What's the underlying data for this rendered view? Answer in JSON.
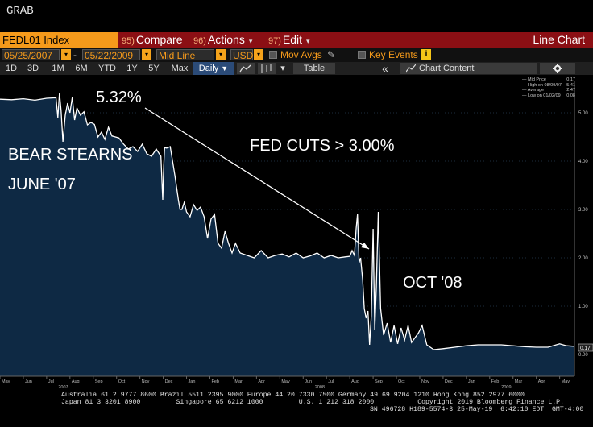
{
  "window": {
    "title": "GRAB"
  },
  "function_bar": {
    "ticker": "FEDL01 Index",
    "buttons": [
      {
        "num": "95)",
        "label": "Compare",
        "caret": ""
      },
      {
        "num": "96)",
        "label": "Actions",
        "caret": "▾"
      },
      {
        "num": "97)",
        "label": "Edit",
        "caret": "▾"
      }
    ],
    "chart_type": "Line Chart"
  },
  "options_bar": {
    "start_date": "05/25/2007",
    "separator": "-",
    "end_date": "05/22/2009",
    "price_type": "Mid Line",
    "currency": "USD",
    "mov_avgs": "Mov Avgs",
    "key_events": "Key Events",
    "info": "i"
  },
  "period_bar": {
    "periods": [
      "1D",
      "3D",
      "1M",
      "6M",
      "YTD",
      "1Y",
      "5Y",
      "Max"
    ],
    "frequency": "Daily",
    "table_label": "Table",
    "chart_content_label": "Chart Content",
    "collapse_label": "«",
    "settings_icon": "gear-icon"
  },
  "legend": [
    {
      "label": "Mid Price",
      "value": "0.17"
    },
    {
      "label": "High on 08/09/07",
      "value": "5.41"
    },
    {
      "label": "Average",
      "value": "2.47"
    },
    {
      "label": "Low on 01/02/09",
      "value": "0.08"
    }
  ],
  "annotations": {
    "peak": "5.32%",
    "cuts": "FED CUTS > 3.00%",
    "bear_line1": "BEAR STEARNS",
    "bear_line2": "JUNE '07",
    "oct": "OCT '08"
  },
  "last_price_tag": "0.17",
  "chart_data": {
    "type": "area",
    "ylim": [
      -0.45,
      5.65
    ],
    "y_ticks": [
      "5.00",
      "4.00",
      "3.00",
      "2.00",
      "1.00",
      "0.00"
    ],
    "y_tick_values": [
      5,
      4,
      3,
      2,
      1,
      0
    ],
    "x_month_labels": [
      "May",
      "Jun",
      "Jul",
      "Aug",
      "Sep",
      "Oct",
      "Nov",
      "Dec",
      "Jan",
      "Feb",
      "Mar",
      "Apr",
      "May",
      "Jun",
      "Jul",
      "Aug",
      "Sep",
      "Oct",
      "Nov",
      "Dec",
      "Jan",
      "Feb",
      "Mar",
      "Apr",
      "May"
    ],
    "x_year_labels": [
      "2007",
      "2008",
      "2009"
    ],
    "x_year_positions": [
      2.5,
      13.5,
      21.5
    ],
    "x_range": [
      0,
      24.6
    ],
    "series": [
      {
        "values_x": [
          0,
          0.5,
          1,
          1.5,
          2,
          2.4,
          2.48,
          2.55,
          2.62,
          2.7,
          2.8,
          2.9,
          3.0,
          3.1,
          3.2,
          3.3,
          3.45,
          3.6,
          3.75,
          3.9,
          4.05,
          4.2,
          4.35,
          4.5,
          4.65,
          4.8,
          4.95,
          5.1,
          5.3,
          5.5,
          5.7,
          5.9,
          6.1,
          6.3,
          6.5,
          6.7,
          6.9,
          6.98,
          7.02,
          7.06,
          7.15,
          7.3,
          7.5,
          7.65,
          7.72,
          7.8,
          7.9,
          8.0,
          8.15,
          8.3,
          8.45,
          8.6,
          8.75,
          8.9,
          9.05,
          9.2,
          9.35,
          9.5,
          9.65,
          9.8,
          9.95,
          10.1,
          10.3,
          10.6,
          10.9,
          11.2,
          11.5,
          11.8,
          12.1,
          12.4,
          12.7,
          13.0,
          13.3,
          13.6,
          13.9,
          14.2,
          14.5,
          14.8,
          15.0,
          15.1,
          15.2,
          15.27,
          15.33,
          15.4,
          15.46,
          15.55,
          15.62,
          15.7,
          15.78,
          15.85,
          15.92,
          16.0,
          16.07,
          16.14,
          16.22,
          16.32,
          16.45,
          16.6,
          16.75,
          16.9,
          17.05,
          17.2,
          17.35,
          17.5,
          17.65,
          17.8,
          17.95,
          18.1,
          18.3,
          18.6,
          19.0,
          19.5,
          20.0,
          20.5,
          21.0,
          21.5,
          22.0,
          22.5,
          23.0,
          23.5,
          24.0,
          24.3,
          24.6
        ],
        "values_y": [
          5.28,
          5.27,
          5.29,
          5.26,
          5.3,
          5.31,
          4.9,
          5.41,
          5.05,
          4.4,
          4.95,
          5.2,
          5.0,
          5.32,
          4.85,
          5.1,
          4.95,
          5.02,
          4.75,
          4.8,
          4.76,
          4.5,
          4.6,
          4.45,
          4.7,
          4.52,
          4.5,
          4.48,
          4.35,
          4.25,
          4.3,
          4.2,
          4.35,
          4.15,
          4.1,
          4.25,
          4.1,
          3.2,
          3.9,
          4.28,
          4.27,
          4.3,
          3.7,
          3.2,
          3.0,
          3.0,
          3.15,
          2.95,
          2.85,
          3.1,
          2.98,
          3.05,
          2.85,
          2.4,
          2.8,
          2.9,
          2.3,
          2.2,
          2.55,
          2.3,
          2.1,
          2.3,
          2.1,
          2.05,
          2.0,
          2.15,
          2.0,
          2.05,
          2.08,
          2.02,
          2.1,
          2.0,
          2.04,
          2.1,
          2.0,
          2.05,
          2.0,
          2.02,
          2.03,
          2.15,
          2.05,
          2.6,
          2.9,
          1.9,
          2.0,
          1.55,
          0.95,
          0.75,
          0.9,
          0.2,
          0.8,
          2.6,
          0.5,
          1.4,
          2.95,
          0.95,
          0.4,
          0.65,
          0.25,
          0.6,
          0.22,
          0.55,
          0.3,
          0.6,
          0.25,
          0.35,
          0.45,
          0.6,
          0.2,
          0.1,
          0.12,
          0.15,
          0.18,
          0.2,
          0.2,
          0.2,
          0.18,
          0.16,
          0.15,
          0.15,
          0.22,
          0.18,
          0.17
        ]
      }
    ]
  },
  "footer": {
    "line1": "Australia 61 2 9777 8600 Brazil 5511 2395 9000 Europe 44 20 7330 7500 Germany 49 69 9204 1210 Hong Kong 852 2977 6000",
    "line2": "Japan 81 3 3201 8900         Singapore 65 6212 1000         U.S. 1 212 318 2000           Copyright 2019 Bloomberg Finance L.P.",
    "line3": "SN 496728 H189-5574-3 25-May-19  6:42:10 EDT  GMT-4:00"
  },
  "colors": {
    "area_fill": "#0e2944",
    "line": "#ffffff",
    "accent_orange": "#f59a1b",
    "function_bar": "#8b0f14"
  }
}
